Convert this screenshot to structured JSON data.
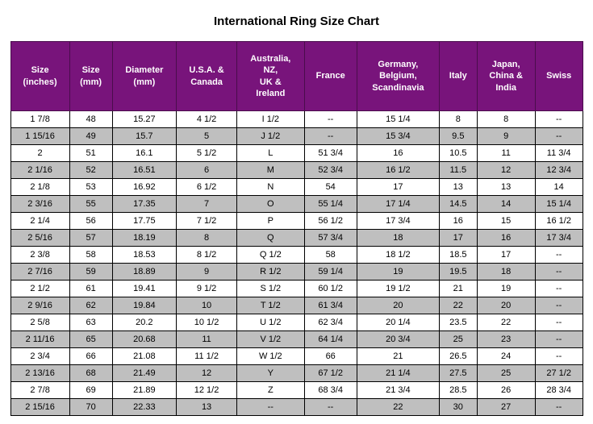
{
  "title": "International Ring Size Chart",
  "header_bg": "#78147b",
  "header_fg": "#ffffff",
  "row_even_bg": "#ffffff",
  "row_odd_bg": "#bfbfbf",
  "columns": [
    "Size (inches)",
    "Size (mm)",
    "Diameter (mm)",
    "U.S.A. & Canada",
    "Australia, NZ, UK & Ireland",
    "France",
    "Germany, Belgium, Scandinavia",
    "Italy",
    "Japan, China & India",
    "Swiss"
  ],
  "rows": [
    [
      "1  7/8",
      "48",
      "15.27",
      "4 1/2",
      "I 1/2",
      "--",
      "15 1/4",
      "8",
      "8",
      "--"
    ],
    [
      "1 15/16",
      "49",
      "15.7",
      "5",
      "J 1/2",
      "--",
      "15 3/4",
      "9.5",
      "9",
      "--"
    ],
    [
      "2",
      "51",
      "16.1",
      "5 1/2",
      "L",
      "51 3/4",
      "16",
      "10.5",
      "11",
      "11 3/4"
    ],
    [
      "2  1/16",
      "52",
      "16.51",
      "6",
      "M",
      "52 3/4",
      "16 1/2",
      "11.5",
      "12",
      "12 3/4"
    ],
    [
      "2  1/8",
      "53",
      "16.92",
      "6 1/2",
      "N",
      "54",
      "17",
      "13",
      "13",
      "14"
    ],
    [
      "2  3/16",
      "55",
      "17.35",
      "7",
      "O",
      "55 1/4",
      "17 1/4",
      "14.5",
      "14",
      "15 1/4"
    ],
    [
      "2  1/4",
      "56",
      "17.75",
      "7 1/2",
      "P",
      "56 1/2",
      "17 3/4",
      "16",
      "15",
      "16 1/2"
    ],
    [
      "2  5/16",
      "57",
      "18.19",
      "8",
      "Q",
      "57 3/4",
      "18",
      "17",
      "16",
      "17 3/4"
    ],
    [
      "2  3/8",
      "58",
      "18.53",
      "8 1/2",
      "Q 1/2",
      "58",
      "18 1/2",
      "18.5",
      "17",
      "--"
    ],
    [
      "2  7/16",
      "59",
      "18.89",
      "9",
      "R 1/2",
      "59 1/4",
      "19",
      "19.5",
      "18",
      "--"
    ],
    [
      "2  1/2",
      "61",
      "19.41",
      "9 1/2",
      "S 1/2",
      "60 1/2",
      "19 1/2",
      "21",
      "19",
      "--"
    ],
    [
      "2  9/16",
      "62",
      "19.84",
      "10",
      "T 1/2",
      "61 3/4",
      "20",
      "22",
      "20",
      "--"
    ],
    [
      "2  5/8",
      "63",
      "20.2",
      "10 1/2",
      "U 1/2",
      "62 3/4",
      "20 1/4",
      "23.5",
      "22",
      "--"
    ],
    [
      "2 11/16",
      "65",
      "20.68",
      "11",
      "V 1/2",
      "64 1/4",
      "20 3/4",
      "25",
      "23",
      "--"
    ],
    [
      "2  3/4",
      "66",
      "21.08",
      "11 1/2",
      "W 1/2",
      "66",
      "21",
      "26.5",
      "24",
      "--"
    ],
    [
      "2 13/16",
      "68",
      "21.49",
      "12",
      "Y",
      "67 1/2",
      "21 1/4",
      "27.5",
      "25",
      "27 1/2"
    ],
    [
      "2  7/8",
      "69",
      "21.89",
      "12 1/2",
      "Z",
      "68 3/4",
      "21 3/4",
      "28.5",
      "26",
      "28 3/4"
    ],
    [
      "2 15/16",
      "70",
      "22.33",
      "13",
      "--",
      "--",
      "22",
      "30",
      "27",
      "--"
    ]
  ]
}
